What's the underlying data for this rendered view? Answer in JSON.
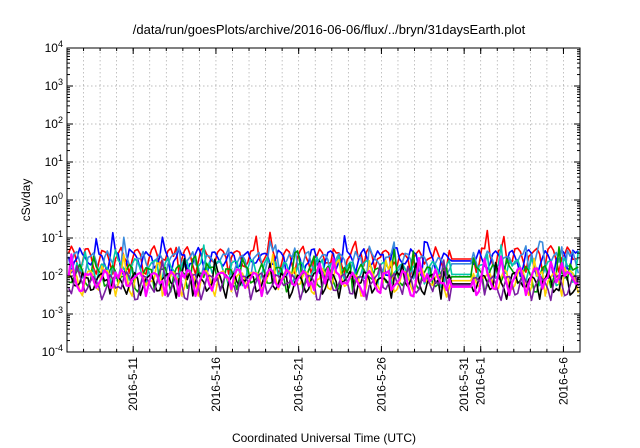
{
  "chart_data": {
    "type": "line",
    "title": "/data/run/goesPlots/archive/2016-06-06/flux/../bryn/31daysEarth.plot",
    "xlabel": "Coordinated Universal Time (UTC)",
    "ylabel": "cSv/day",
    "y_scale": "log",
    "ylim": [
      0.0001,
      10000
    ],
    "xlim": [
      "2016-05-07",
      "2016-06-07"
    ],
    "grid": true,
    "legend": "none",
    "y_ticks": [
      {
        "value": 0.0001,
        "base": "10",
        "exp": "-4"
      },
      {
        "value": 0.001,
        "base": "10",
        "exp": "-3"
      },
      {
        "value": 0.01,
        "base": "10",
        "exp": "-2"
      },
      {
        "value": 0.1,
        "base": "10",
        "exp": "-1"
      },
      {
        "value": 1,
        "base": "10",
        "exp": "0"
      },
      {
        "value": 10,
        "base": "10",
        "exp": "1"
      },
      {
        "value": 100,
        "base": "10",
        "exp": "2"
      },
      {
        "value": 1000,
        "base": "10",
        "exp": "3"
      },
      {
        "value": 10000,
        "base": "10",
        "exp": "4"
      }
    ],
    "x_ticks": [
      "2016-5-11",
      "2016-5-16",
      "2016-5-21",
      "2016-5-26",
      "2016-5-31",
      "2016-6-1",
      "2016-6-6"
    ],
    "data_gap": [
      "2016-05-30",
      "2016-05-31"
    ],
    "series": [
      {
        "color": "#ff0000",
        "baseline": 0.032,
        "before_gap": 0.03,
        "after_gap": 0.036,
        "gap_level": 0.028
      },
      {
        "color": "#0000ff",
        "baseline": 0.03,
        "before_gap": 0.026,
        "after_gap": 0.028,
        "gap_level": 0.025
      },
      {
        "color": "#3b8bdc",
        "baseline": 0.025,
        "before_gap": 0.022,
        "after_gap": 0.025,
        "gap_level": 0.021
      },
      {
        "color": "#00c8a8",
        "baseline": 0.016,
        "before_gap": 0.014,
        "after_gap": 0.016,
        "gap_level": 0.011
      },
      {
        "color": "#00a000",
        "baseline": 0.011,
        "before_gap": 0.01,
        "after_gap": 0.011,
        "gap_level": 0.0095
      },
      {
        "color": "#ffd000",
        "baseline": 0.0085,
        "before_gap": 0.008,
        "after_gap": 0.0085,
        "gap_level": 0.0075
      },
      {
        "color": "#000000",
        "baseline": 0.0075,
        "before_gap": 0.007,
        "after_gap": 0.007,
        "gap_level": 0.0062
      },
      {
        "color": "#7a1fa0",
        "baseline": 0.0068,
        "before_gap": 0.0065,
        "after_gap": 0.0065,
        "gap_level": 0.0058
      },
      {
        "color": "#ff00ff",
        "baseline": 0.0085,
        "before_gap": 0.008,
        "after_gap": 0.009,
        "gap_level": 0.0052
      }
    ]
  }
}
